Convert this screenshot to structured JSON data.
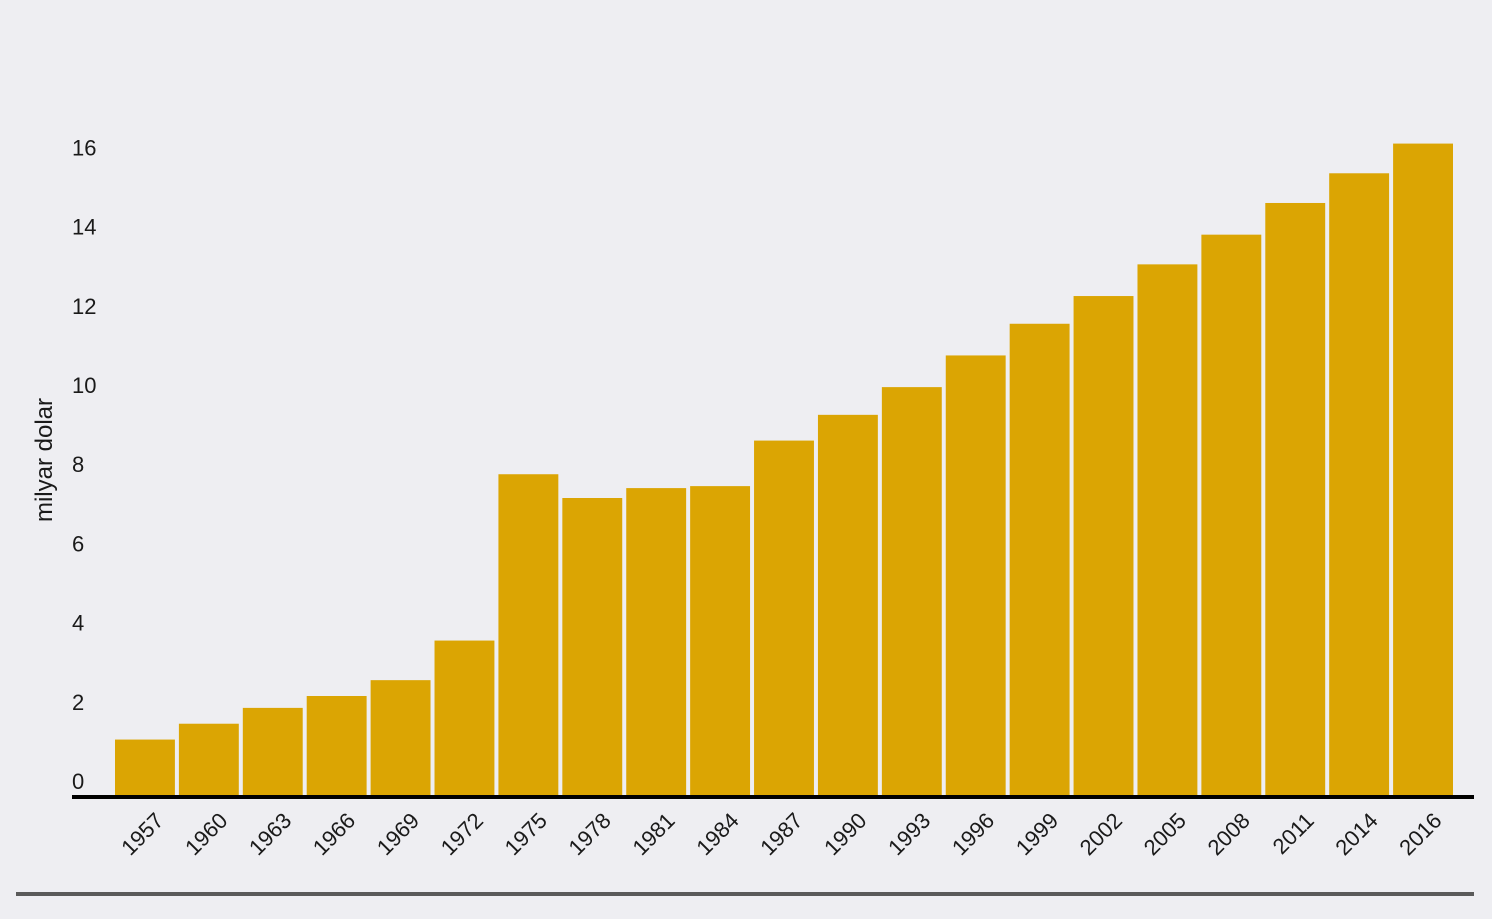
{
  "chart_data": {
    "type": "bar",
    "title": "",
    "xlabel": "",
    "ylabel": "milyar dolar",
    "ylim": [
      0,
      16.5
    ],
    "yticks": [
      0,
      2,
      4,
      6,
      8,
      10,
      12,
      14,
      16
    ],
    "grid": false,
    "categories": [
      "1957",
      "1960",
      "1963",
      "1966",
      "1969",
      "1972",
      "1975",
      "1978",
      "1981",
      "1984",
      "1987",
      "1990",
      "1993",
      "1996",
      "1999",
      "2002",
      "2005",
      "2008",
      "2011",
      "2014",
      "2016"
    ],
    "values": [
      1.4,
      1.8,
      2.2,
      2.5,
      2.9,
      3.9,
      8.1,
      7.5,
      7.75,
      7.8,
      8.95,
      9.6,
      10.3,
      11.1,
      11.9,
      12.6,
      13.4,
      14.15,
      14.95,
      15.7,
      16.45
    ],
    "colors": {
      "bar": "#dba503",
      "background": "#eeeef2",
      "axis": "#000000",
      "rule": "#5a5a5a"
    }
  }
}
